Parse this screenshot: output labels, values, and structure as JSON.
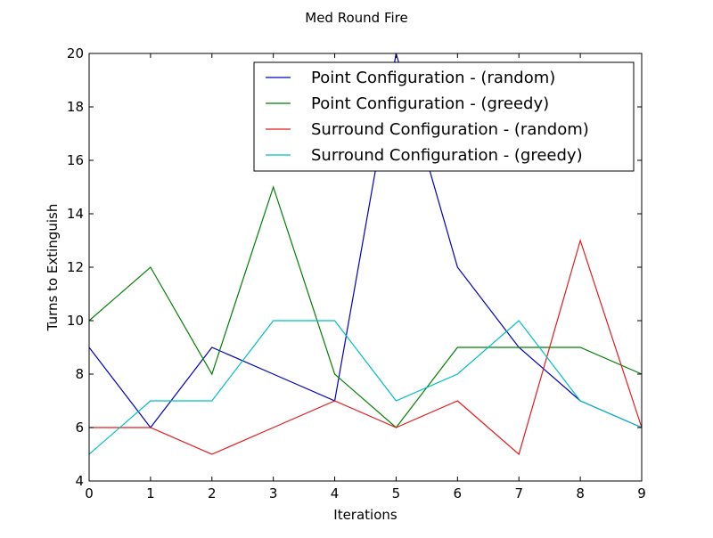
{
  "chart_data": {
    "type": "line",
    "title": "Med Round Fire",
    "xlabel": "Iterations",
    "ylabel": "Turns to Extinguish",
    "xlim": [
      0,
      9
    ],
    "ylim": [
      4,
      20
    ],
    "x_ticks": [
      0,
      1,
      2,
      3,
      4,
      5,
      6,
      7,
      8,
      9
    ],
    "y_ticks": [
      4,
      6,
      8,
      10,
      12,
      14,
      16,
      18,
      20
    ],
    "grid": false,
    "legend_position": "top-right",
    "x": [
      0,
      1,
      2,
      3,
      4,
      5,
      6,
      7,
      8,
      9
    ],
    "series": [
      {
        "name": "Point Configuration -  (random)",
        "color": "#0000bf",
        "values": [
          9,
          6,
          9,
          8,
          7,
          20,
          12,
          9,
          7,
          6
        ]
      },
      {
        "name": "Point Configuration -  (greedy)",
        "color": "#007f00",
        "values": [
          10,
          12,
          8,
          15,
          8,
          6,
          9,
          9,
          9,
          8
        ]
      },
      {
        "name": "Surround Configuration -  (random)",
        "color": "#e31a1c",
        "values": [
          6,
          6,
          5,
          6,
          7,
          6,
          7,
          5,
          13,
          6
        ]
      },
      {
        "name": "Surround Configuration -  (greedy)",
        "color": "#00bfbf",
        "values": [
          5,
          7,
          7,
          10,
          10,
          7,
          8,
          10,
          7,
          6
        ]
      }
    ]
  }
}
